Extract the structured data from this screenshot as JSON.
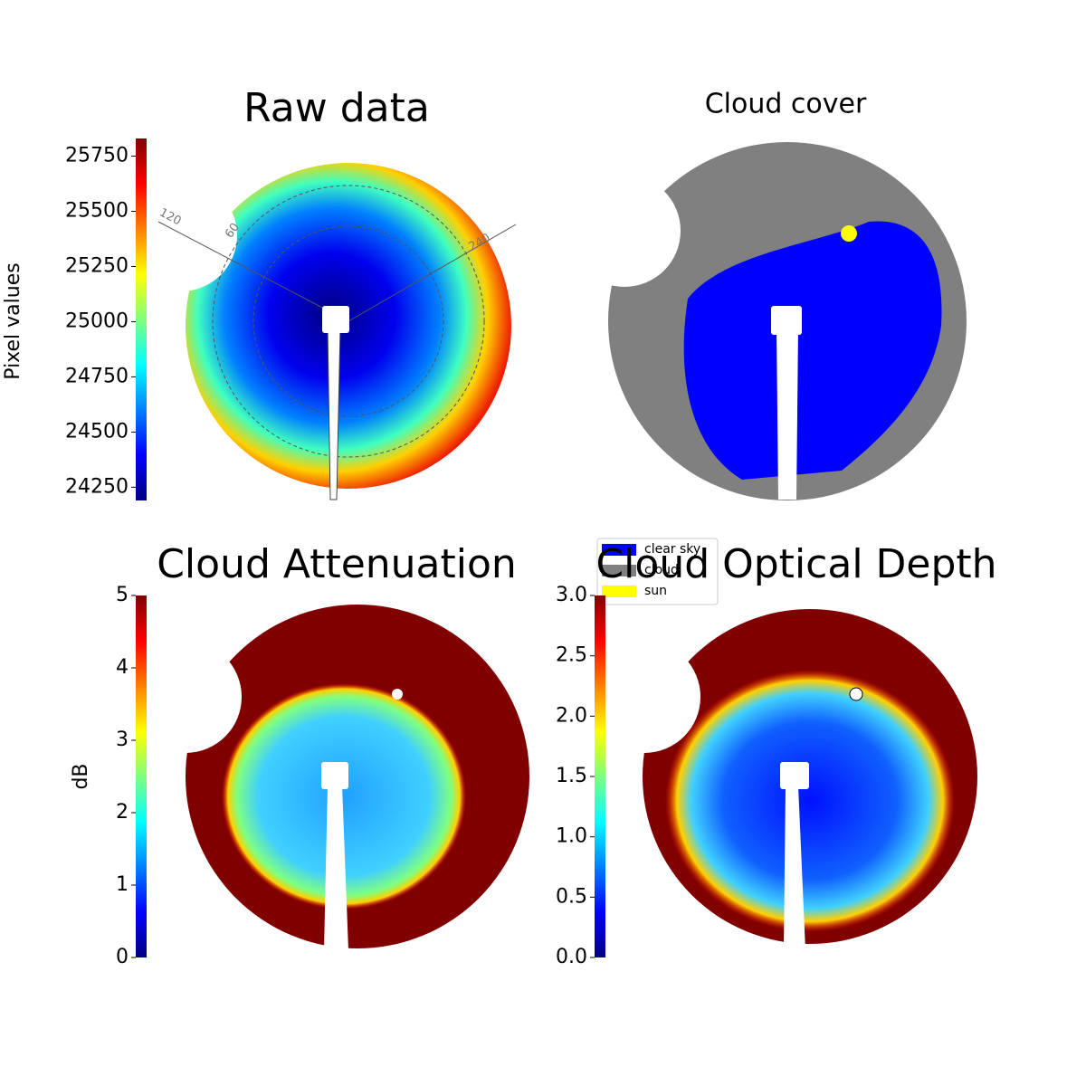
{
  "chart_data": [
    {
      "type": "image",
      "title": "Raw data",
      "colorbar_label": "Pixel values",
      "colormap": "jet",
      "clim": [
        24190,
        25830
      ],
      "cticks": [
        24250,
        24500,
        24750,
        25000,
        25250,
        25500,
        25750
      ],
      "annotations": [
        "120",
        "60",
        "240"
      ]
    },
    {
      "type": "image",
      "title": "Cloud cover",
      "legend": [
        {
          "name": "clear sky",
          "color": "#0000ff"
        },
        {
          "name": "cloud",
          "color": "#808080"
        },
        {
          "name": "sun",
          "color": "#ffff00"
        }
      ]
    },
    {
      "type": "image",
      "title": "Cloud Attenuation",
      "colorbar_label": "dB",
      "colormap": "jet",
      "clim": [
        0,
        5
      ],
      "cticks": [
        0,
        1,
        2,
        3,
        4,
        5
      ]
    },
    {
      "type": "image",
      "title": "Cloud Optical Depth",
      "colormap": "jet",
      "clim": [
        0,
        3
      ],
      "cticks": [
        {
          "value": 0,
          "label": "0.0"
        },
        {
          "value": 0.5,
          "label": "0.5"
        },
        {
          "value": 1,
          "label": "1.0"
        },
        {
          "value": 1.5,
          "label": "1.5"
        },
        {
          "value": 2,
          "label": "2.0"
        },
        {
          "value": 2.5,
          "label": "2.5"
        },
        {
          "value": 3,
          "label": "3.0"
        }
      ]
    }
  ]
}
